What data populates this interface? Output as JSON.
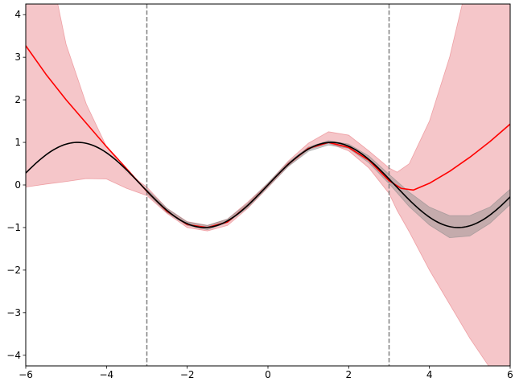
{
  "chart_data": {
    "type": "line",
    "title": "",
    "xlabel": "",
    "ylabel": "",
    "xlim": [
      -6,
      6
    ],
    "ylim": [
      -4.25,
      4.25
    ],
    "xticks": [
      -6,
      -4,
      -2,
      0,
      2,
      4,
      6
    ],
    "yticks": [
      -4,
      -3,
      -2,
      -1,
      0,
      1,
      2,
      3,
      4
    ],
    "xtick_labels": [
      "−6",
      "−4",
      "−2",
      "0",
      "2",
      "4",
      "6"
    ],
    "ytick_labels": [
      "−4",
      "−3",
      "−2",
      "−1",
      "0",
      "1",
      "2",
      "3",
      "4"
    ],
    "grid": false,
    "vlines": [
      {
        "x": -3,
        "style": "dashed",
        "color": "#808080"
      },
      {
        "x": 3,
        "style": "dashed",
        "color": "#808080"
      }
    ],
    "bands": [
      {
        "color": "#e8787f",
        "opacity": 0.42,
        "x": [
          -6.0,
          -5.5,
          -5.0,
          -4.5,
          -4.0,
          -3.5,
          -3.0,
          -2.5,
          -2.0,
          -1.5,
          -1.0,
          -0.5,
          0.0,
          0.5,
          1.0,
          1.5,
          2.0,
          2.5,
          3.0,
          3.2,
          3.5,
          4.0,
          4.5,
          5.0,
          5.5,
          6.0
        ],
        "upper": [
          8.0,
          5.6,
          3.3,
          1.9,
          0.9,
          0.3,
          -0.05,
          -0.55,
          -0.86,
          -0.95,
          -0.8,
          -0.4,
          0.04,
          0.56,
          0.98,
          1.25,
          1.17,
          0.8,
          0.4,
          0.3,
          0.5,
          1.5,
          3.0,
          5.0,
          7.0,
          9.0
        ],
        "lower": [
          -0.05,
          0.02,
          0.08,
          0.15,
          0.14,
          -0.08,
          -0.25,
          -0.67,
          -1.0,
          -1.08,
          -0.95,
          -0.55,
          -0.06,
          0.44,
          0.83,
          0.98,
          0.8,
          0.4,
          -0.2,
          -0.6,
          -1.1,
          -2.0,
          -2.8,
          -3.6,
          -4.3,
          -5.0
        ]
      },
      {
        "color": "#8a8a8a",
        "opacity": 0.45,
        "x": [
          -3.0,
          -2.5,
          -2.0,
          -1.5,
          -1.0,
          -0.5,
          0.0,
          0.5,
          1.0,
          1.5,
          2.0,
          2.5,
          3.0,
          3.5,
          4.0,
          4.5,
          5.0,
          5.5,
          6.0
        ],
        "upper": [
          -0.1,
          -0.55,
          -0.87,
          -0.95,
          -0.8,
          -0.43,
          0.05,
          0.53,
          0.89,
          1.04,
          0.96,
          0.68,
          0.25,
          -0.17,
          -0.52,
          -0.72,
          -0.72,
          -0.52,
          -0.1
        ],
        "lower": [
          -0.2,
          -0.65,
          -0.95,
          -1.05,
          -0.88,
          -0.53,
          -0.05,
          0.43,
          0.79,
          0.94,
          0.86,
          0.52,
          0.03,
          -0.51,
          -0.94,
          -1.24,
          -1.2,
          -0.9,
          -0.46
        ]
      }
    ],
    "series": [
      {
        "color": "#ff0000",
        "x": [
          -6.0,
          -5.5,
          -5.0,
          -4.5,
          -4.0,
          -3.5,
          -3.0,
          -2.5,
          -2.0,
          -1.5,
          -1.0,
          -0.5,
          0.0,
          0.5,
          1.0,
          1.5,
          2.0,
          2.5,
          3.0,
          3.3,
          3.6,
          4.0,
          4.5,
          5.0,
          5.5,
          6.0
        ],
        "y": [
          3.27,
          2.6,
          2.0,
          1.45,
          0.9,
          0.38,
          -0.15,
          -0.62,
          -0.93,
          -1.0,
          -0.87,
          -0.48,
          0.0,
          0.49,
          0.86,
          1.0,
          0.88,
          0.58,
          0.1,
          -0.08,
          -0.12,
          0.04,
          0.32,
          0.65,
          1.02,
          1.43
        ]
      },
      {
        "color": "#000000",
        "function": "sin(x)",
        "x": [
          -6.0,
          -5.5,
          -5.0,
          -4.71,
          -4.5,
          -4.0,
          -3.5,
          -3.0,
          -2.5,
          -2.0,
          -1.57,
          -1.0,
          -0.5,
          0.0,
          0.5,
          1.0,
          1.57,
          2.0,
          2.5,
          3.0,
          3.5,
          4.0,
          4.71,
          5.0,
          5.5,
          6.0
        ],
        "y": [
          0.28,
          0.71,
          0.96,
          1.0,
          0.98,
          0.76,
          0.35,
          -0.14,
          -0.6,
          -0.91,
          -1.0,
          -0.84,
          -0.48,
          0.0,
          0.48,
          0.84,
          1.0,
          0.91,
          0.6,
          0.14,
          -0.35,
          -0.76,
          -1.0,
          -0.96,
          -0.71,
          -0.28
        ]
      }
    ]
  }
}
